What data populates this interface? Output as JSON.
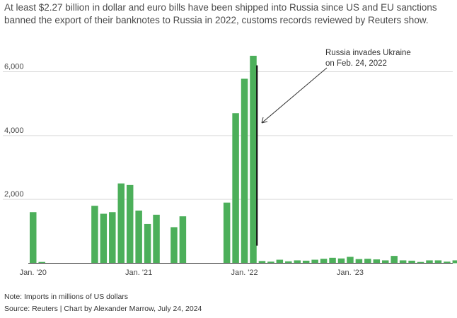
{
  "subtitle": {
    "line1": "At least $2.27 billion in dollar and euro bills have been shipped into Russia since US and EU sanctions",
    "line2": "banned the export of their banknotes to Russia in 2022, customs records reviewed by Reuters show."
  },
  "footer": {
    "note": "Note: Imports in millions of US dollars",
    "source": "Source: Reuters | Chart by Alexander Marrow, July 24, 2024"
  },
  "chart_data": {
    "type": "bar",
    "title": "",
    "xlabel": "",
    "ylabel": "",
    "ylim": [
      0,
      6500
    ],
    "yticks": [
      2000,
      4000,
      6000
    ],
    "ytick_labels": [
      "2,000",
      "4,000",
      "6,000"
    ],
    "xtick_labels": [
      {
        "label": "Jan. '20",
        "month_index": 0
      },
      {
        "label": "Jan. '21",
        "month_index": 12
      },
      {
        "label": "Jan. '22",
        "month_index": 24
      },
      {
        "label": "Jan. '23",
        "month_index": 36
      }
    ],
    "grid": true,
    "bar_color": "#4caf5a",
    "categories": [
      "2020-01",
      "2020-02",
      "2020-03",
      "2020-04",
      "2020-05",
      "2020-06",
      "2020-07",
      "2020-08",
      "2020-09",
      "2020-10",
      "2020-11",
      "2020-12",
      "2021-01",
      "2021-02",
      "2021-03",
      "2021-04",
      "2021-05",
      "2021-06",
      "2021-07",
      "2021-08",
      "2021-09",
      "2021-10",
      "2021-11",
      "2021-12",
      "2022-01",
      "2022-02",
      "2022-03",
      "2022-04",
      "2022-05",
      "2022-06",
      "2022-07",
      "2022-08",
      "2022-09",
      "2022-10",
      "2022-11",
      "2022-12",
      "2023-01",
      "2023-02",
      "2023-03",
      "2023-04",
      "2023-05",
      "2023-06",
      "2023-07",
      "2023-08",
      "2023-09",
      "2023-10",
      "2023-11",
      "2023-12",
      "2024-01"
    ],
    "values": [
      1600,
      40,
      0,
      0,
      0,
      0,
      0,
      1800,
      1550,
      1600,
      2500,
      2450,
      1650,
      1230,
      1520,
      0,
      1130,
      1470,
      0,
      0,
      0,
      0,
      1900,
      4700,
      5780,
      6500,
      70,
      50,
      110,
      60,
      90,
      80,
      110,
      140,
      170,
      150,
      200,
      130,
      140,
      120,
      90,
      230,
      90,
      80,
      40,
      90,
      90,
      50,
      90
    ],
    "annotation": {
      "text_line1": "Russia invades Ukraine",
      "text_line2": "on Feb. 24, 2022",
      "marker_month_index": 25.8,
      "marker_top_value": 6200,
      "marker_bottom_value": 550
    }
  }
}
